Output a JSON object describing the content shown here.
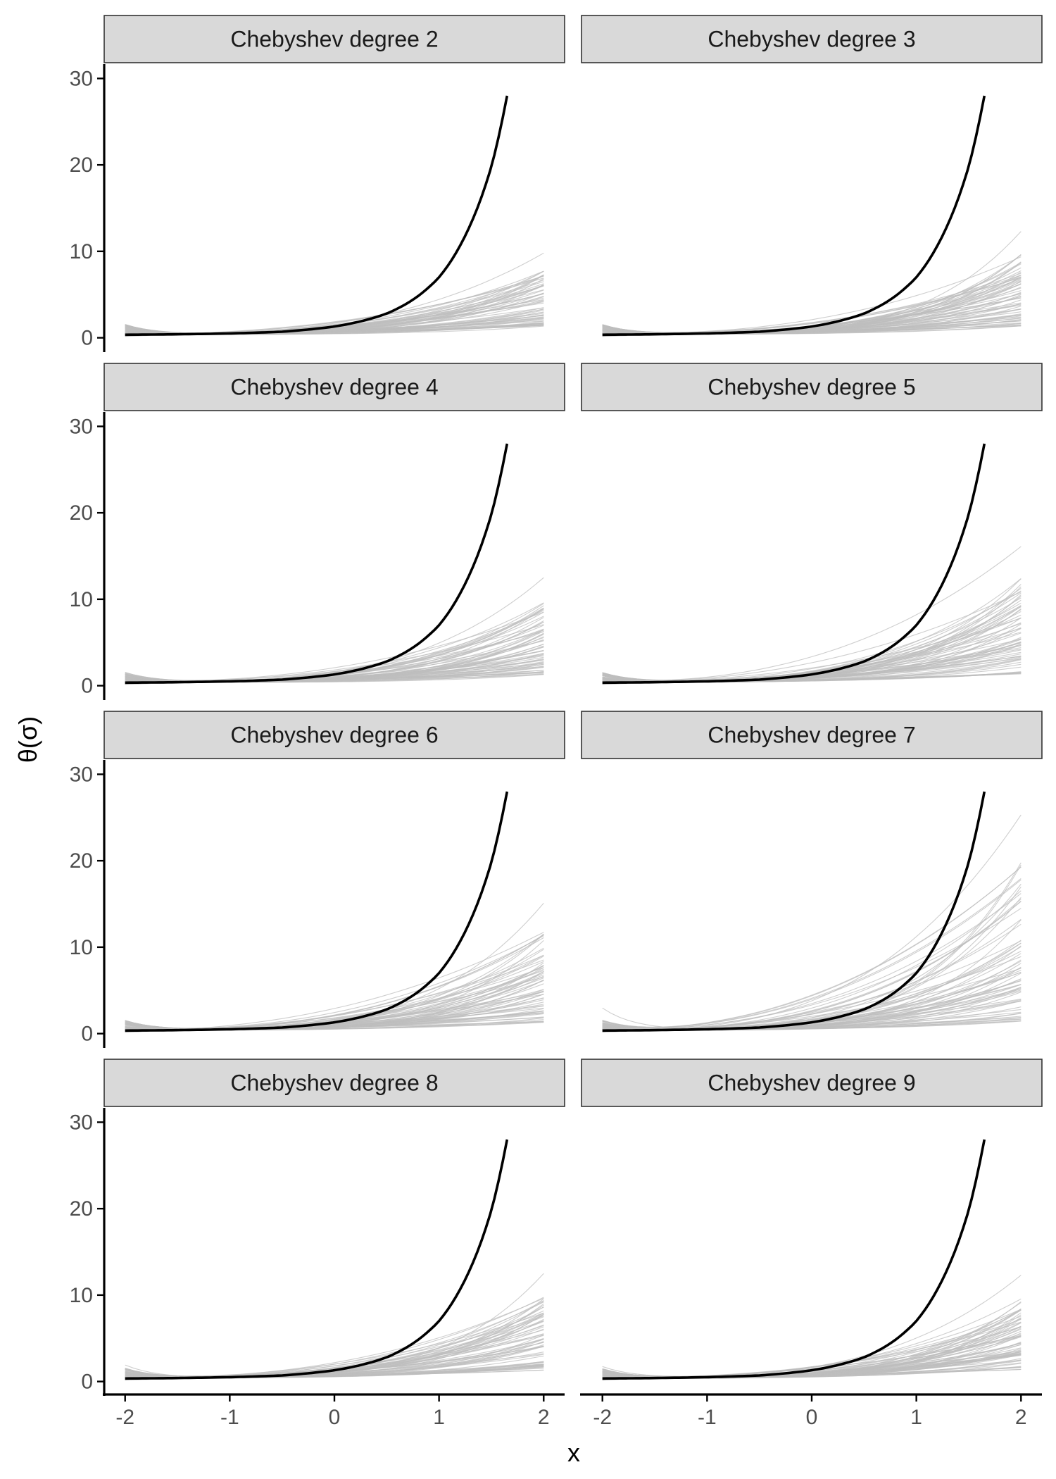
{
  "chart_data": {
    "type": "line",
    "facet_layout": "grid of 4 rows x 2 columns",
    "xlabel": "x",
    "ylabel": "θ(σ)",
    "xlim": [
      -2.2,
      2.2
    ],
    "ylim": [
      -1.5,
      31.5
    ],
    "x_ticks": [
      -2,
      -1,
      0,
      1,
      2
    ],
    "x_tick_labels": [
      "-2",
      "-1",
      "0",
      "1",
      "2"
    ],
    "y_ticks": [
      0,
      10,
      20,
      30
    ],
    "y_tick_labels": [
      "0",
      "10",
      "20",
      "30"
    ],
    "grid": false,
    "colors": {
      "true_curve": "#000000",
      "sample_curves": "#bdbdbd",
      "strip_fill": "#d9d9d9"
    },
    "true_curve": {
      "x": [
        -2.0,
        -1.5,
        -1.0,
        -0.5,
        0.0,
        0.25,
        0.5,
        0.75,
        1.0,
        1.25,
        1.5,
        1.65
      ],
      "y": [
        0.35,
        0.4,
        0.5,
        0.7,
        1.3,
        1.9,
        2.8,
        4.4,
        7.0,
        11.8,
        19.8,
        28.0
      ]
    },
    "sample_x": [
      -2.0,
      -1.5,
      -1.0,
      -0.5,
      0.0,
      0.5,
      1.0,
      1.5,
      2.0
    ],
    "panels": [
      {
        "title": "Chebyshev degree 2",
        "sample_max_right": 9.5,
        "sample_max_left": 2.3
      },
      {
        "title": "Chebyshev degree 3",
        "sample_max_right": 12.0,
        "sample_max_left": 1.6
      },
      {
        "title": "Chebyshev degree 4",
        "sample_max_right": 12.2,
        "sample_max_left": 2.6
      },
      {
        "title": "Chebyshev degree 5",
        "sample_max_right": 15.8,
        "sample_max_left": 1.5
      },
      {
        "title": "Chebyshev degree 6",
        "sample_max_right": 14.8,
        "sample_max_left": 2.5
      },
      {
        "title": "Chebyshev degree 7",
        "sample_max_right": 25.0,
        "sample_max_left": 3.0
      },
      {
        "title": "Chebyshev degree 8",
        "sample_max_right": 12.2,
        "sample_max_left": 3.8
      },
      {
        "title": "Chebyshev degree 9",
        "sample_max_right": 12.0,
        "sample_max_left": 1.6
      }
    ]
  }
}
